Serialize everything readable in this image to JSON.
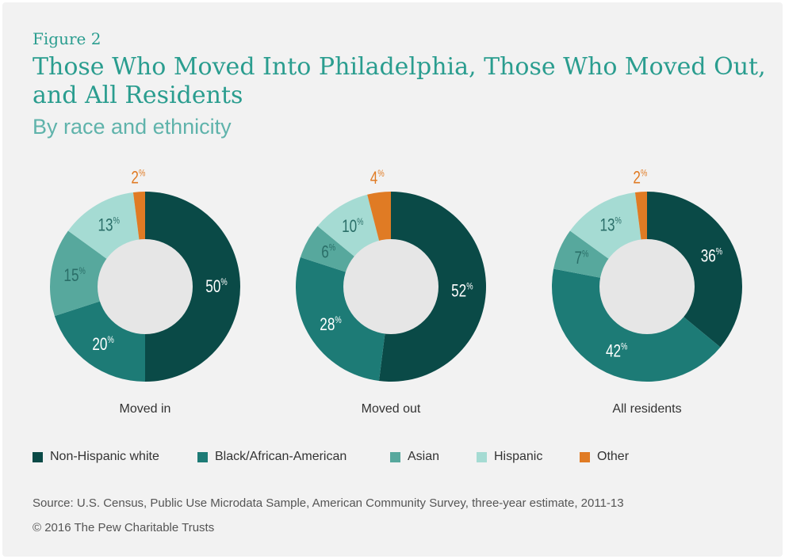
{
  "figure_label": "Figure 2",
  "title": "Those Who Moved Into Philadelphia, Those Who Moved Out, and All Residents",
  "subtitle": "By race and ethnicity",
  "colors": {
    "Non-Hispanic white": "#0a4a47",
    "Black/African-American": "#1d7b76",
    "Asian": "#57a89d",
    "Hispanic": "#a5dbd3",
    "Other": "#e07b24",
    "hole": "#e6e6e6"
  },
  "chart_data": [
    {
      "type": "pie",
      "title": "Moved in",
      "labels": [
        "Non-Hispanic white",
        "Black/African-American",
        "Asian",
        "Hispanic",
        "Other"
      ],
      "values": [
        50,
        20,
        15,
        13,
        2
      ],
      "value_labels": [
        "50",
        "20",
        "15",
        "13",
        "2"
      ],
      "unit": "%"
    },
    {
      "type": "pie",
      "title": "Moved out",
      "labels": [
        "Non-Hispanic white",
        "Black/African-American",
        "Asian",
        "Hispanic",
        "Other"
      ],
      "values": [
        52,
        28,
        6,
        10,
        4
      ],
      "value_labels": [
        "52",
        "28",
        "6",
        "10",
        "4"
      ],
      "unit": "%"
    },
    {
      "type": "pie",
      "title": "All residents",
      "labels": [
        "Non-Hispanic white",
        "Black/African-American",
        "Asian",
        "Hispanic",
        "Other"
      ],
      "values": [
        36,
        42,
        7,
        13,
        2
      ],
      "value_labels": [
        "36",
        "42",
        "7",
        "13",
        "2"
      ],
      "unit": "%"
    }
  ],
  "legend": [
    {
      "label": "Non-Hispanic white",
      "color": "#0a4a47"
    },
    {
      "label": "Black/African-American",
      "color": "#1d7b76"
    },
    {
      "label": "Asian",
      "color": "#57a89d"
    },
    {
      "label": "Hispanic",
      "color": "#a5dbd3"
    },
    {
      "label": "Other",
      "color": "#e07b24"
    }
  ],
  "source": "Source: U.S. Census, Public Use Microdata Sample, American Community Survey, three-year estimate, 2011-13",
  "copyright": "© 2016 The Pew Charitable Trusts"
}
